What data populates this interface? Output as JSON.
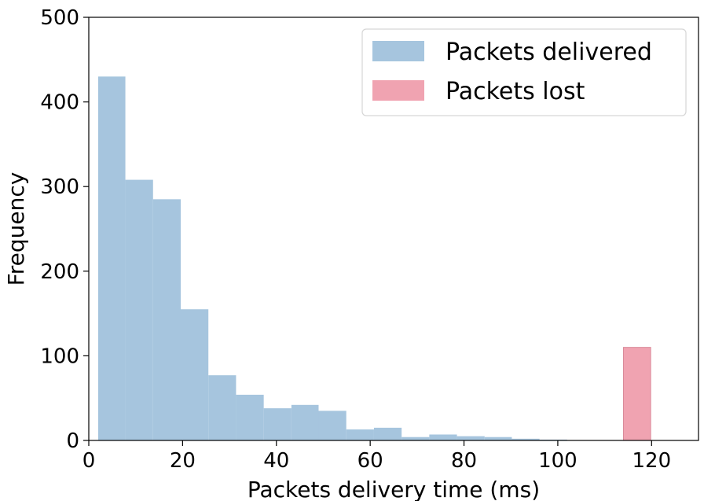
{
  "chart_data": {
    "type": "bar",
    "xlabel": "Packets delivery time (ms)",
    "ylabel": "Frequency",
    "xlim": [
      0,
      130
    ],
    "ylim": [
      0,
      500
    ],
    "xticks": [
      0,
      20,
      40,
      60,
      80,
      100,
      120
    ],
    "yticks": [
      0,
      100,
      200,
      300,
      400,
      500
    ],
    "grid": false,
    "legend_position": "top-right",
    "series": [
      {
        "name": "Packets delivered",
        "color": "#a6c5de",
        "bins": [
          {
            "x0": 2.0,
            "x1": 7.8,
            "value": 430
          },
          {
            "x0": 7.8,
            "x1": 13.7,
            "value": 308
          },
          {
            "x0": 13.7,
            "x1": 19.6,
            "value": 285
          },
          {
            "x0": 19.6,
            "x1": 25.5,
            "value": 155
          },
          {
            "x0": 25.5,
            "x1": 31.4,
            "value": 77
          },
          {
            "x0": 31.4,
            "x1": 37.3,
            "value": 54
          },
          {
            "x0": 37.3,
            "x1": 43.2,
            "value": 38
          },
          {
            "x0": 43.2,
            "x1": 49.0,
            "value": 42
          },
          {
            "x0": 49.0,
            "x1": 54.9,
            "value": 35
          },
          {
            "x0": 54.9,
            "x1": 60.8,
            "value": 13
          },
          {
            "x0": 60.8,
            "x1": 66.7,
            "value": 15
          },
          {
            "x0": 66.7,
            "x1": 72.6,
            "value": 4
          },
          {
            "x0": 72.6,
            "x1": 78.5,
            "value": 7
          },
          {
            "x0": 78.5,
            "x1": 84.4,
            "value": 5
          },
          {
            "x0": 84.4,
            "x1": 90.2,
            "value": 4
          },
          {
            "x0": 90.2,
            "x1": 96.1,
            "value": 2
          },
          {
            "x0": 96.1,
            "x1": 102.0,
            "value": 1
          }
        ]
      },
      {
        "name": "Packets lost",
        "color": "#f0a3b1",
        "bins": [
          {
            "x0": 114.0,
            "x1": 119.8,
            "value": 110
          }
        ]
      }
    ]
  }
}
